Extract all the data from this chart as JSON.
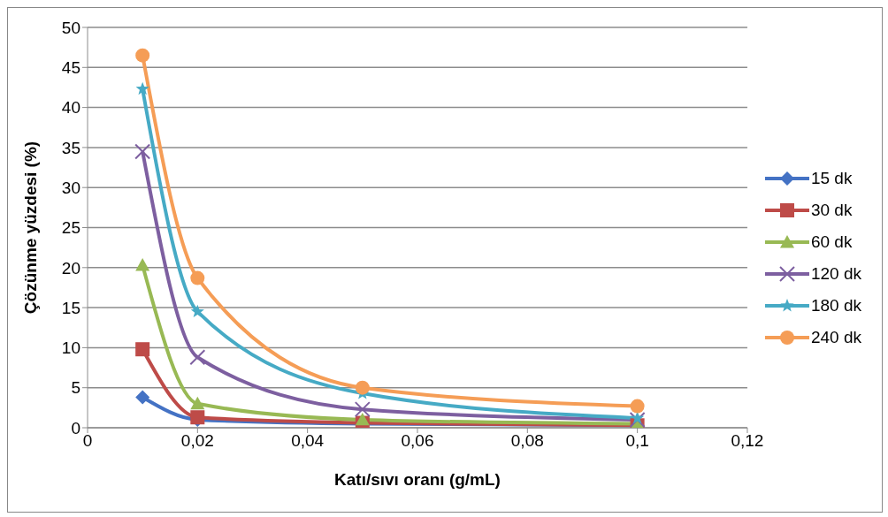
{
  "chart_data": {
    "type": "line",
    "xlabel": "Katı/sıvı oranı (g/mL)",
    "ylabel": "Çözünme yüzdesi (%)",
    "x": [
      0.01,
      0.02,
      0.05,
      0.1
    ],
    "series": [
      {
        "name": "15 dk",
        "color": "#4472c4",
        "marker": "diamond",
        "values": [
          3.8,
          1.0,
          0.5,
          0.3
        ]
      },
      {
        "name": "30 dk",
        "color": "#be4b48",
        "marker": "square",
        "values": [
          9.8,
          1.3,
          0.6,
          0.3
        ]
      },
      {
        "name": "60 dk",
        "color": "#98b954",
        "marker": "triangle",
        "values": [
          20.3,
          3.0,
          1.0,
          0.5
        ]
      },
      {
        "name": "120 dk",
        "color": "#7d5fa0",
        "marker": "cross",
        "values": [
          34.5,
          8.8,
          2.3,
          1.0
        ]
      },
      {
        "name": "180 dk",
        "color": "#46aac5",
        "marker": "star",
        "values": [
          42.3,
          14.5,
          4.3,
          1.2
        ]
      },
      {
        "name": "240 dk",
        "color": "#f59d56",
        "marker": "circle",
        "values": [
          46.5,
          18.7,
          5.0,
          2.7
        ]
      }
    ],
    "xlim": [
      0,
      0.12
    ],
    "xticks": [
      0,
      {
        "value": 0.02,
        "label": "0,02"
      },
      {
        "value": 0.04,
        "label": "0,04"
      },
      {
        "value": 0.06,
        "label": "0,06"
      },
      {
        "value": 0.08,
        "label": "0,08"
      },
      {
        "value": 0.1,
        "label": "0,1"
      },
      {
        "value": 0.12,
        "label": "0,12"
      }
    ],
    "ylim": [
      0,
      50
    ],
    "yticks": [
      0,
      5,
      10,
      15,
      20,
      25,
      30,
      35,
      40,
      45,
      50
    ],
    "grid": "y",
    "legend": "right"
  }
}
